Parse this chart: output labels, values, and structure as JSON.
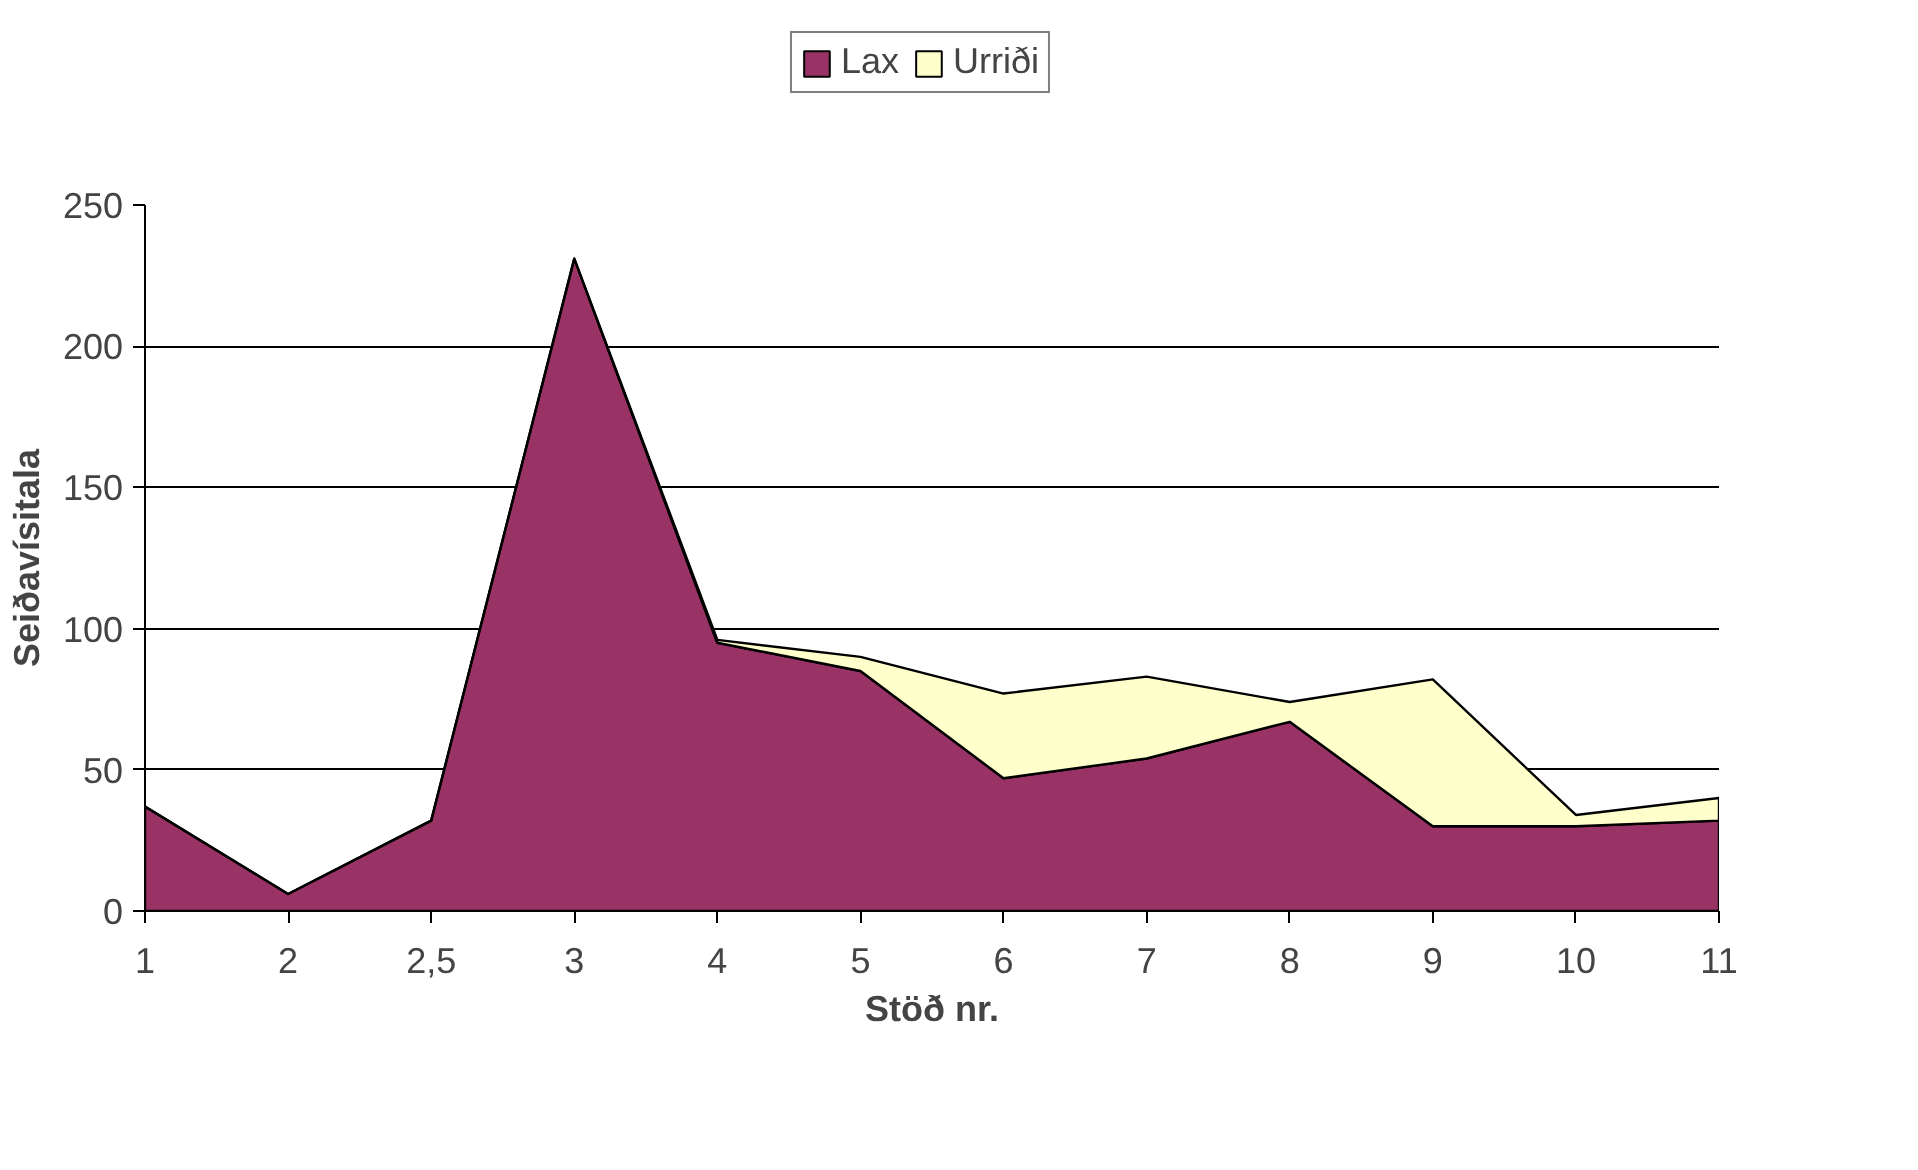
{
  "chart_data": {
    "type": "area",
    "stacked": true,
    "xlabel": "Stöð nr.",
    "ylabel": "Seiðavísitala",
    "categories": [
      "1",
      "2",
      "2,5",
      "3",
      "4",
      "5",
      "6",
      "7",
      "8",
      "9",
      "10",
      "11"
    ],
    "series": [
      {
        "name": "Lax",
        "color": "#993366",
        "values": [
          37,
          6,
          32,
          231,
          95,
          85,
          47,
          54,
          67,
          30,
          30,
          32
        ]
      },
      {
        "name": "Urriði",
        "color": "#ffffcc",
        "values": [
          0,
          0,
          0,
          0,
          1,
          5,
          30,
          29,
          7,
          52,
          4,
          8
        ]
      }
    ],
    "ylim": [
      0,
      250
    ],
    "yticks": [
      0,
      50,
      100,
      150,
      200,
      250
    ],
    "grid": "y",
    "legend": "top"
  }
}
